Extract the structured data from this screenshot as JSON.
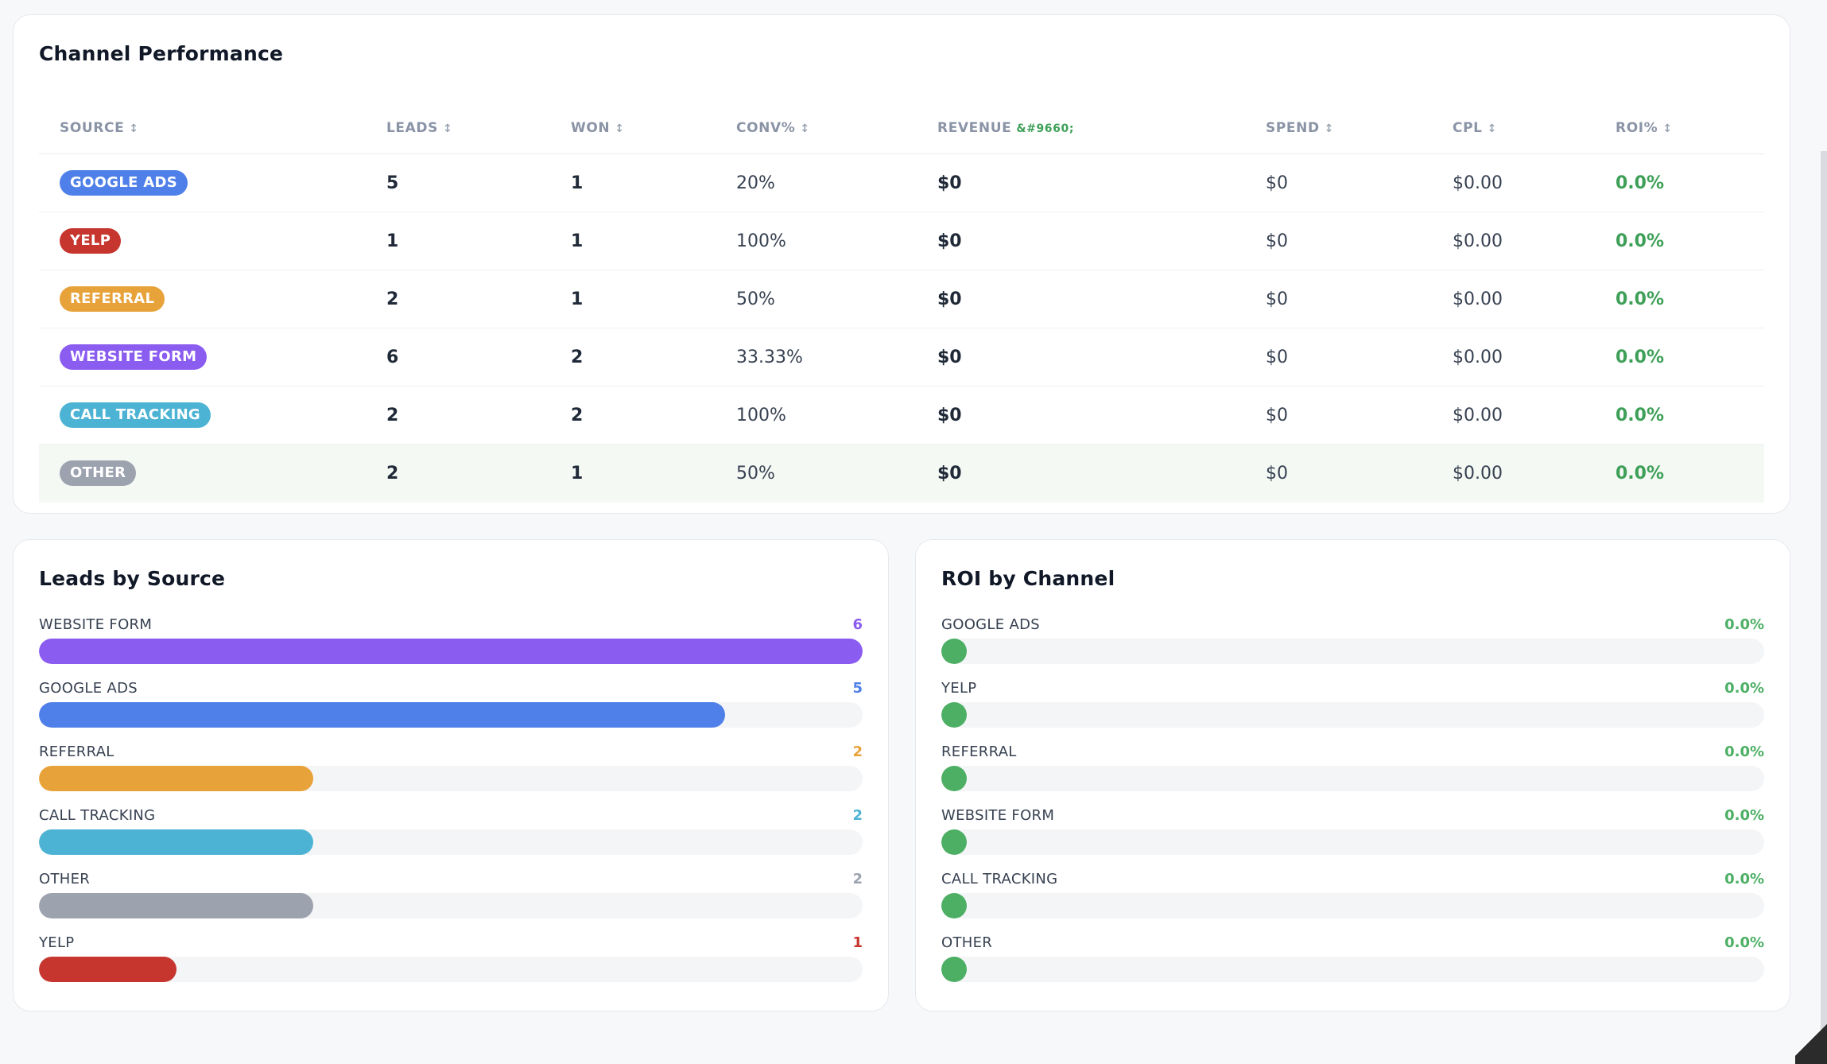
{
  "channel_performance": {
    "title": "Channel Performance",
    "columns": [
      {
        "label": "SOURCE",
        "sort": "↕"
      },
      {
        "label": "LEADS",
        "sort": "↕"
      },
      {
        "label": "WON",
        "sort": "↕"
      },
      {
        "label": "CONV%",
        "sort": "↕"
      },
      {
        "label": "REVENUE",
        "sort": "&#9660;"
      },
      {
        "label": "SPEND",
        "sort": "↕"
      },
      {
        "label": "CPL",
        "sort": "↕"
      },
      {
        "label": "ROI%",
        "sort": "↕"
      }
    ],
    "rows": [
      {
        "source": "GOOGLE ADS",
        "color": "#4f7fe8",
        "leads": "5",
        "won": "1",
        "conv": "20%",
        "revenue": "$0",
        "spend": "$0",
        "cpl": "$0.00",
        "roi": "0.0%"
      },
      {
        "source": "YELP",
        "color": "#c6362f",
        "leads": "1",
        "won": "1",
        "conv": "100%",
        "revenue": "$0",
        "spend": "$0",
        "cpl": "$0.00",
        "roi": "0.0%"
      },
      {
        "source": "REFERRAL",
        "color": "#e8a23a",
        "leads": "2",
        "won": "1",
        "conv": "50%",
        "revenue": "$0",
        "spend": "$0",
        "cpl": "$0.00",
        "roi": "0.0%"
      },
      {
        "source": "WEBSITE FORM",
        "color": "#8a5cf0",
        "leads": "6",
        "won": "2",
        "conv": "33.33%",
        "revenue": "$0",
        "spend": "$0",
        "cpl": "$0.00",
        "roi": "0.0%"
      },
      {
        "source": "CALL TRACKING",
        "color": "#4cb3d4",
        "leads": "2",
        "won": "2",
        "conv": "100%",
        "revenue": "$0",
        "spend": "$0",
        "cpl": "$0.00",
        "roi": "0.0%"
      },
      {
        "source": "OTHER",
        "color": "#9ca3af",
        "leads": "2",
        "won": "1",
        "conv": "50%",
        "revenue": "$0",
        "spend": "$0",
        "cpl": "$0.00",
        "roi": "0.0%"
      }
    ]
  },
  "leads_by_source": {
    "title": "Leads by Source",
    "max": 6,
    "items": [
      {
        "label": "WEBSITE FORM",
        "value": 6,
        "display": "6",
        "color": "#8a5cf0"
      },
      {
        "label": "GOOGLE ADS",
        "value": 5,
        "display": "5",
        "color": "#4f7fe8"
      },
      {
        "label": "REFERRAL",
        "value": 2,
        "display": "2",
        "color": "#e8a23a"
      },
      {
        "label": "CALL TRACKING",
        "value": 2,
        "display": "2",
        "color": "#4cb3d4"
      },
      {
        "label": "OTHER",
        "value": 2,
        "display": "2",
        "color": "#9ca3af"
      },
      {
        "label": "YELP",
        "value": 1,
        "display": "1",
        "color": "#c6362f"
      }
    ]
  },
  "roi_by_channel": {
    "title": "ROI by Channel",
    "color": "#4caf64",
    "items": [
      {
        "label": "GOOGLE ADS",
        "value": "0.0%"
      },
      {
        "label": "YELP",
        "value": "0.0%"
      },
      {
        "label": "REFERRAL",
        "value": "0.0%"
      },
      {
        "label": "WEBSITE FORM",
        "value": "0.0%"
      },
      {
        "label": "CALL TRACKING",
        "value": "0.0%"
      },
      {
        "label": "OTHER",
        "value": "0.0%"
      }
    ]
  }
}
